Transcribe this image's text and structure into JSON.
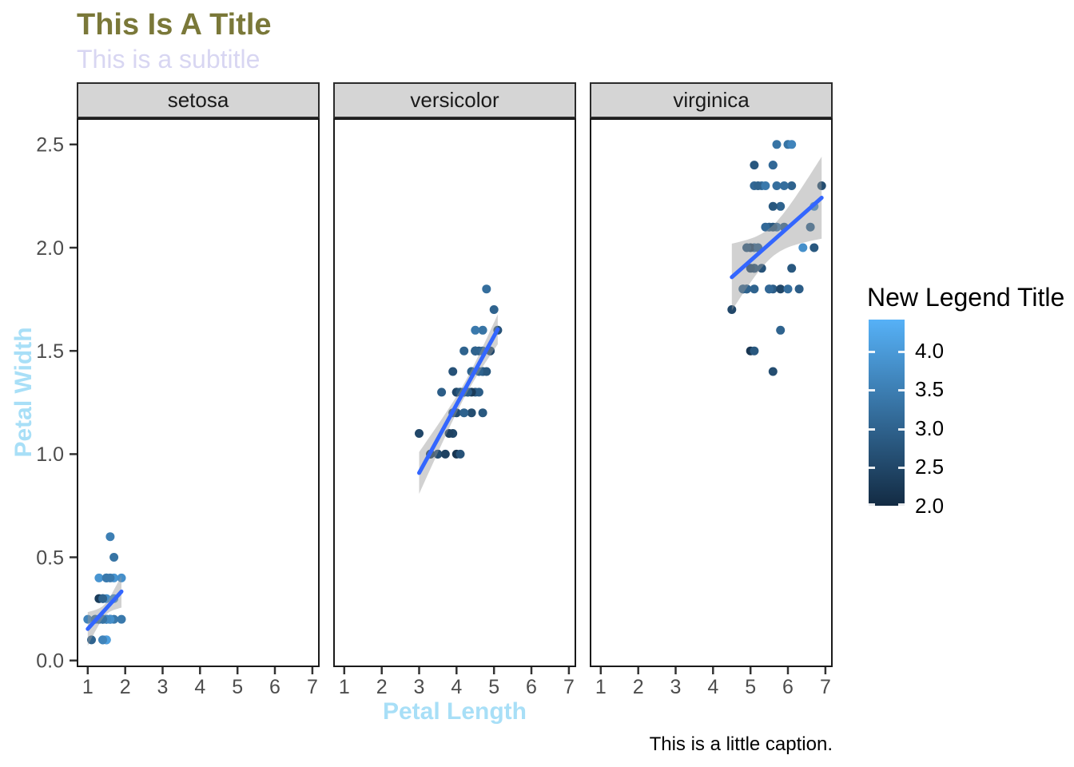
{
  "title": "This Is A Title",
  "subtitle": "This is a subtitle",
  "caption": "This is a little caption.",
  "x_axis": {
    "label": "Petal Length",
    "tick_labels": [
      "1",
      "2",
      "3",
      "4",
      "5",
      "6",
      "7"
    ],
    "tick_values": [
      1,
      2,
      3,
      4,
      5,
      6,
      7
    ],
    "domain": [
      0.705,
      7.195
    ]
  },
  "y_axis": {
    "label": "Petal Width",
    "tick_labels": [
      "0.0",
      "0.5",
      "1.0",
      "1.5",
      "2.0",
      "2.5"
    ],
    "tick_values": [
      0.0,
      0.5,
      1.0,
      1.5,
      2.0,
      2.5
    ],
    "domain": [
      -0.032,
      2.627
    ]
  },
  "legend": {
    "title": "New Legend Title",
    "tick_labels": [
      "4.0",
      "3.5",
      "3.0",
      "2.5",
      "2.0"
    ],
    "tick_values": [
      4.0,
      3.5,
      3.0,
      2.5,
      2.0
    ],
    "domain": [
      2.0,
      4.4
    ]
  },
  "colors": {
    "title": "#7A7839",
    "subtitle": "#D8D6F2",
    "axis_title": "#A8DFF7",
    "tick_label": "#4D4D4D",
    "axis_tick": "#333333",
    "strip_fill": "#D5D5D5",
    "strip_border": "#2B2B2B",
    "panel_border": "#1A1A1A",
    "smooth_line": "#3366FF",
    "smooth_band": "rgba(153,153,153,0.45)",
    "gradient_low": "#132B43",
    "gradient_high": "#56B1F7"
  },
  "chart_data": {
    "type": "scatter",
    "title": "This Is A Title",
    "subtitle": "This is a subtitle",
    "caption": "This is a little caption.",
    "xlabel": "Petal Length",
    "ylabel": "Petal Width",
    "xlim": [
      0.705,
      7.195
    ],
    "ylim": [
      -0.032,
      2.627
    ],
    "grid": false,
    "legend_position": "right",
    "color_scale": {
      "legend_title": "New Legend Title",
      "low": "#132B43",
      "high": "#56B1F7",
      "domain": [
        2.0,
        4.4
      ]
    },
    "point_format": [
      "petal_length",
      "petal_width",
      "color_value"
    ],
    "facets": [
      {
        "label": "setosa",
        "smooth": {
          "slope": 0.2012,
          "intercept": -0.0482,
          "x_range": [
            1.0,
            1.9
          ],
          "x_mean": 1.462,
          "sxx": 1.4752,
          "sigma": 0.1,
          "n": 50,
          "t_crit": 2.011
        },
        "points": [
          [
            1.4,
            0.2,
            3.5
          ],
          [
            1.4,
            0.2,
            3.0
          ],
          [
            1.3,
            0.2,
            3.2
          ],
          [
            1.5,
            0.2,
            3.1
          ],
          [
            1.4,
            0.2,
            3.6
          ],
          [
            1.7,
            0.4,
            3.9
          ],
          [
            1.4,
            0.3,
            3.4
          ],
          [
            1.5,
            0.2,
            3.4
          ],
          [
            1.4,
            0.2,
            2.9
          ],
          [
            1.5,
            0.1,
            3.1
          ],
          [
            1.5,
            0.2,
            3.7
          ],
          [
            1.6,
            0.2,
            3.4
          ],
          [
            1.4,
            0.1,
            3.0
          ],
          [
            1.1,
            0.1,
            3.0
          ],
          [
            1.2,
            0.2,
            4.0
          ],
          [
            1.5,
            0.4,
            4.4
          ],
          [
            1.3,
            0.4,
            3.9
          ],
          [
            1.4,
            0.3,
            3.5
          ],
          [
            1.7,
            0.3,
            3.8
          ],
          [
            1.5,
            0.3,
            3.8
          ],
          [
            1.7,
            0.2,
            3.4
          ],
          [
            1.5,
            0.4,
            3.7
          ],
          [
            1.0,
            0.2,
            3.6
          ],
          [
            1.7,
            0.5,
            3.3
          ],
          [
            1.9,
            0.2,
            3.4
          ],
          [
            1.6,
            0.2,
            3.0
          ],
          [
            1.6,
            0.4,
            3.4
          ],
          [
            1.5,
            0.2,
            3.5
          ],
          [
            1.4,
            0.2,
            3.4
          ],
          [
            1.6,
            0.2,
            3.2
          ],
          [
            1.6,
            0.2,
            3.1
          ],
          [
            1.5,
            0.4,
            3.4
          ],
          [
            1.5,
            0.1,
            4.1
          ],
          [
            1.4,
            0.2,
            4.2
          ],
          [
            1.5,
            0.2,
            3.1
          ],
          [
            1.2,
            0.2,
            3.2
          ],
          [
            1.3,
            0.2,
            3.5
          ],
          [
            1.4,
            0.1,
            3.6
          ],
          [
            1.3,
            0.2,
            3.0
          ],
          [
            1.5,
            0.2,
            3.4
          ],
          [
            1.3,
            0.3,
            3.5
          ],
          [
            1.3,
            0.3,
            2.3
          ],
          [
            1.3,
            0.2,
            3.2
          ],
          [
            1.6,
            0.6,
            3.5
          ],
          [
            1.9,
            0.4,
            3.8
          ],
          [
            1.4,
            0.3,
            3.0
          ],
          [
            1.6,
            0.2,
            3.8
          ],
          [
            1.4,
            0.2,
            3.2
          ],
          [
            1.5,
            0.2,
            3.7
          ],
          [
            1.4,
            0.2,
            3.3
          ]
        ]
      },
      {
        "label": "versicolor",
        "smooth": {
          "slope": 0.3311,
          "intercept": -0.0843,
          "x_range": [
            3.0,
            5.1
          ],
          "x_mean": 4.26,
          "sxx": 10.82,
          "sigma": 0.1234,
          "n": 50,
          "t_crit": 2.011
        },
        "points": [
          [
            4.7,
            1.4,
            3.2
          ],
          [
            4.5,
            1.5,
            3.2
          ],
          [
            4.9,
            1.5,
            3.1
          ],
          [
            4.0,
            1.3,
            2.3
          ],
          [
            4.6,
            1.5,
            2.8
          ],
          [
            4.5,
            1.3,
            2.8
          ],
          [
            4.7,
            1.6,
            3.3
          ],
          [
            3.3,
            1.0,
            2.4
          ],
          [
            4.6,
            1.3,
            2.9
          ],
          [
            3.9,
            1.4,
            2.7
          ],
          [
            3.5,
            1.0,
            2.0
          ],
          [
            4.2,
            1.5,
            3.0
          ],
          [
            4.0,
            1.0,
            2.2
          ],
          [
            4.7,
            1.4,
            2.9
          ],
          [
            3.6,
            1.3,
            2.9
          ],
          [
            4.4,
            1.4,
            3.1
          ],
          [
            4.5,
            1.5,
            3.0
          ],
          [
            4.1,
            1.0,
            2.7
          ],
          [
            4.5,
            1.5,
            2.2
          ],
          [
            3.9,
            1.1,
            2.5
          ],
          [
            4.8,
            1.8,
            3.2
          ],
          [
            4.0,
            1.3,
            2.8
          ],
          [
            4.9,
            1.5,
            2.5
          ],
          [
            4.7,
            1.2,
            2.8
          ],
          [
            4.3,
            1.3,
            2.9
          ],
          [
            4.4,
            1.4,
            3.0
          ],
          [
            4.8,
            1.4,
            2.8
          ],
          [
            5.0,
            1.7,
            3.0
          ],
          [
            4.5,
            1.5,
            2.9
          ],
          [
            3.5,
            1.0,
            2.6
          ],
          [
            3.8,
            1.1,
            2.4
          ],
          [
            3.7,
            1.0,
            2.4
          ],
          [
            3.9,
            1.2,
            2.7
          ],
          [
            5.1,
            1.6,
            2.7
          ],
          [
            4.5,
            1.5,
            3.0
          ],
          [
            4.5,
            1.6,
            3.4
          ],
          [
            4.7,
            1.5,
            3.1
          ],
          [
            4.4,
            1.3,
            2.3
          ],
          [
            4.1,
            1.3,
            3.0
          ],
          [
            4.0,
            1.3,
            2.5
          ],
          [
            4.4,
            1.2,
            2.6
          ],
          [
            4.6,
            1.4,
            3.0
          ],
          [
            4.0,
            1.2,
            2.6
          ],
          [
            3.3,
            1.0,
            2.3
          ],
          [
            4.2,
            1.3,
            2.7
          ],
          [
            4.2,
            1.2,
            3.0
          ],
          [
            4.2,
            1.3,
            2.9
          ],
          [
            4.3,
            1.3,
            2.9
          ],
          [
            3.0,
            1.1,
            2.5
          ],
          [
            4.1,
            1.3,
            2.8
          ]
        ]
      },
      {
        "label": "virginica",
        "smooth": {
          "slope": 0.1603,
          "intercept": 1.136,
          "x_range": [
            4.5,
            6.9
          ],
          "x_mean": 5.552,
          "sxx": 14.925,
          "sigma": 0.2627,
          "n": 50,
          "t_crit": 2.011
        },
        "points": [
          [
            6.0,
            2.5,
            3.3
          ],
          [
            5.1,
            1.9,
            2.7
          ],
          [
            5.9,
            2.1,
            3.0
          ],
          [
            5.6,
            1.8,
            2.9
          ],
          [
            5.8,
            2.2,
            3.0
          ],
          [
            6.6,
            2.1,
            3.0
          ],
          [
            4.5,
            1.7,
            2.5
          ],
          [
            6.3,
            1.8,
            2.9
          ],
          [
            5.8,
            1.8,
            2.5
          ],
          [
            6.1,
            2.5,
            3.6
          ],
          [
            5.1,
            2.0,
            3.2
          ],
          [
            5.3,
            1.9,
            2.7
          ],
          [
            5.5,
            2.1,
            3.0
          ],
          [
            5.0,
            2.0,
            2.5
          ],
          [
            5.1,
            2.4,
            2.8
          ],
          [
            5.3,
            2.3,
            3.2
          ],
          [
            5.5,
            1.8,
            3.0
          ],
          [
            6.7,
            2.2,
            3.8
          ],
          [
            6.9,
            2.3,
            2.6
          ],
          [
            5.0,
            1.5,
            2.2
          ],
          [
            5.7,
            2.3,
            3.2
          ],
          [
            4.9,
            2.0,
            2.8
          ],
          [
            6.7,
            2.0,
            2.8
          ],
          [
            4.9,
            1.8,
            2.7
          ],
          [
            5.7,
            2.1,
            3.3
          ],
          [
            6.0,
            1.8,
            3.2
          ],
          [
            4.8,
            1.8,
            2.8
          ],
          [
            4.9,
            1.8,
            3.0
          ],
          [
            5.6,
            2.1,
            2.8
          ],
          [
            5.8,
            1.6,
            3.0
          ],
          [
            6.1,
            1.9,
            2.8
          ],
          [
            6.4,
            2.0,
            3.8
          ],
          [
            5.6,
            2.2,
            2.8
          ],
          [
            5.1,
            1.5,
            2.8
          ],
          [
            5.6,
            1.4,
            2.6
          ],
          [
            6.1,
            2.3,
            3.0
          ],
          [
            5.6,
            2.4,
            3.4
          ],
          [
            5.5,
            1.8,
            3.1
          ],
          [
            4.8,
            1.8,
            3.0
          ],
          [
            5.4,
            2.1,
            3.1
          ],
          [
            5.6,
            2.4,
            3.1
          ],
          [
            5.1,
            2.3,
            3.1
          ],
          [
            5.1,
            1.9,
            2.7
          ],
          [
            5.9,
            2.3,
            3.2
          ],
          [
            5.7,
            2.5,
            3.3
          ],
          [
            5.2,
            2.3,
            3.0
          ],
          [
            5.0,
            1.9,
            2.5
          ],
          [
            5.2,
            2.0,
            3.0
          ],
          [
            5.4,
            2.3,
            3.4
          ],
          [
            5.1,
            1.8,
            3.0
          ]
        ]
      }
    ]
  }
}
